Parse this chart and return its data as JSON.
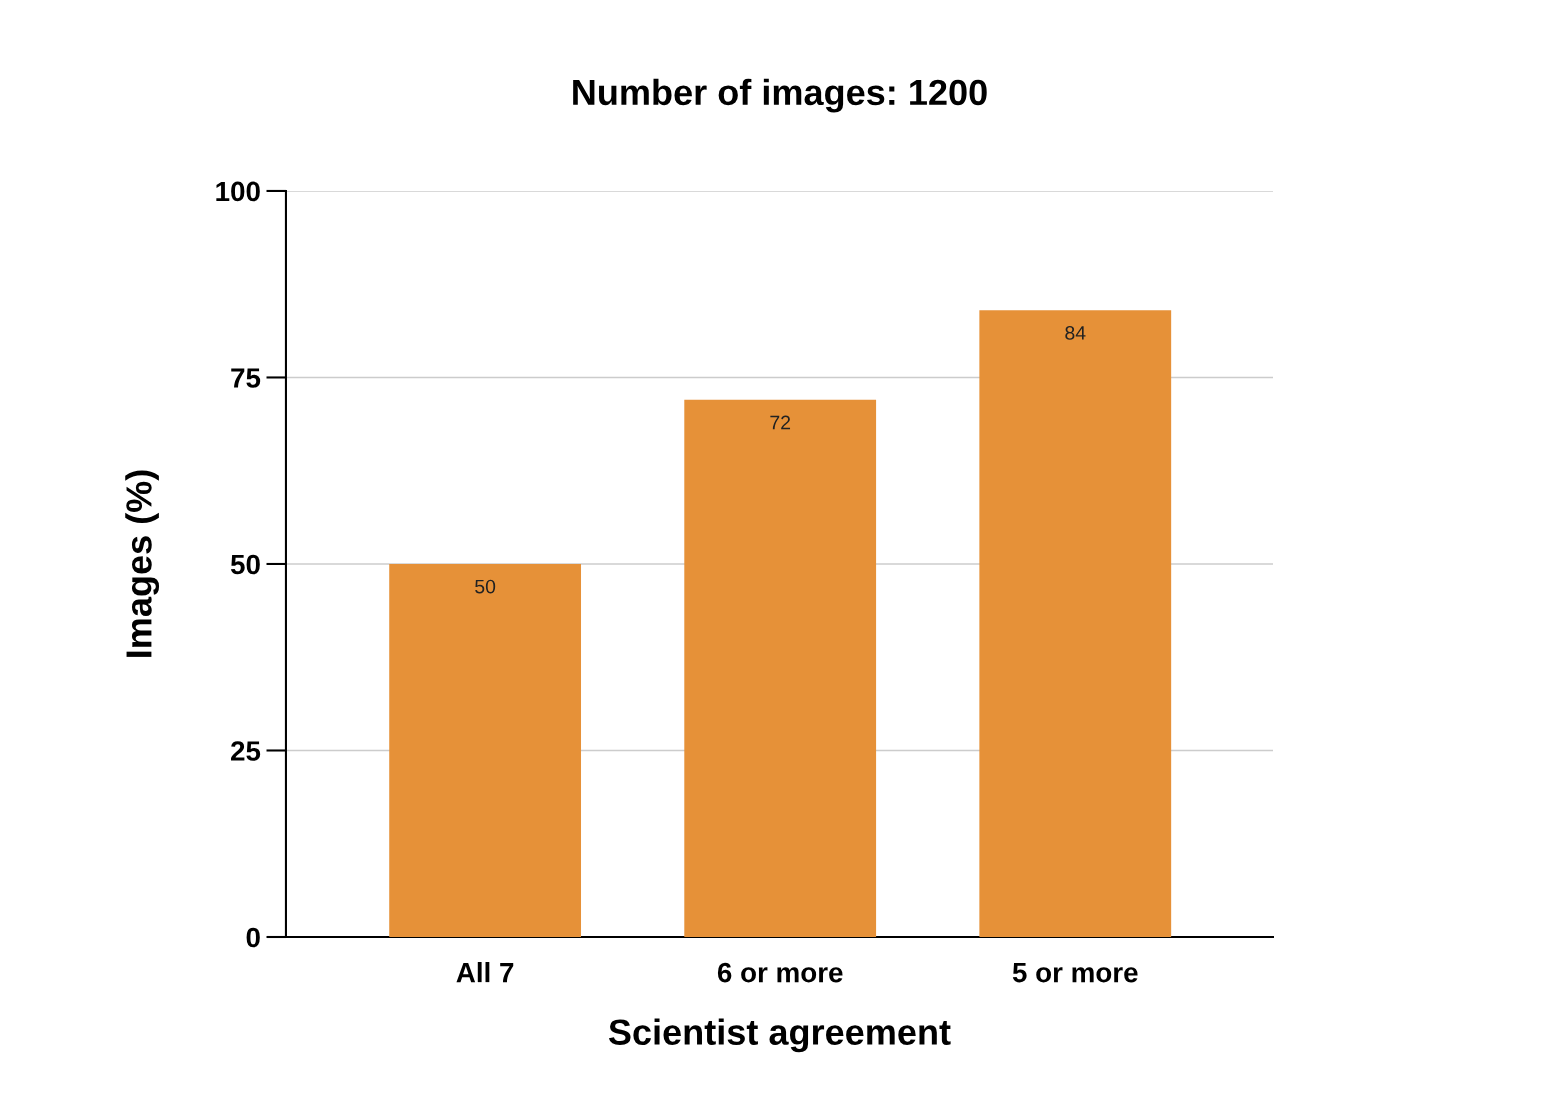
{
  "chart_data": {
    "type": "bar",
    "title": "Number of images: 1200",
    "xlabel": "Scientist agreement",
    "ylabel": "Images (%)",
    "categories": [
      "All 7",
      "6 or more",
      "5 or more"
    ],
    "values": [
      50,
      72,
      84
    ],
    "color": "#e69138",
    "ylim": [
      0,
      100
    ],
    "yticks": [
      0,
      25,
      50,
      75,
      100
    ],
    "grid": "y",
    "data_labels": true
  }
}
